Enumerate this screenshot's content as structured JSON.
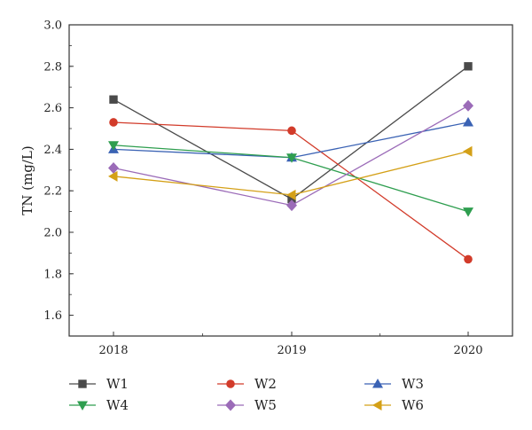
{
  "chart_data": {
    "type": "line",
    "title": "",
    "xlabel": "",
    "ylabel": "TN (mg/L)",
    "x": [
      "2018",
      "2019",
      "2020"
    ],
    "ylim": [
      1.5,
      3.0
    ],
    "yticks": [
      "1.6",
      "1.8",
      "2.0",
      "2.2",
      "2.4",
      "2.6",
      "2.8",
      "3.0"
    ],
    "grid": false,
    "legend_position": "bottom",
    "series": [
      {
        "name": "W1",
        "values": [
          2.64,
          2.16,
          2.8
        ],
        "color": "#4a4a4a",
        "marker": "square"
      },
      {
        "name": "W2",
        "values": [
          2.53,
          2.49,
          1.87
        ],
        "color": "#d23b2a",
        "marker": "circle"
      },
      {
        "name": "W3",
        "values": [
          2.4,
          2.36,
          2.53
        ],
        "color": "#3a62b4",
        "marker": "triangle-up"
      },
      {
        "name": "W4",
        "values": [
          2.42,
          2.36,
          2.1
        ],
        "color": "#2e9e4f",
        "marker": "triangle-down"
      },
      {
        "name": "W5",
        "values": [
          2.31,
          2.13,
          2.61
        ],
        "color": "#9b6bb8",
        "marker": "diamond"
      },
      {
        "name": "W6",
        "values": [
          2.27,
          2.18,
          2.39
        ],
        "color": "#d4a017",
        "marker": "triangle-left"
      }
    ]
  }
}
